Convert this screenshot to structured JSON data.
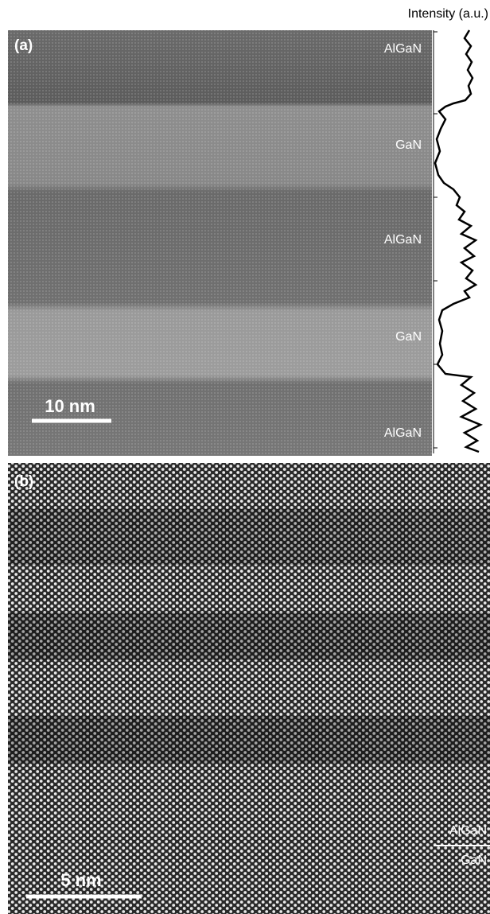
{
  "panel_a": {
    "label": "(a)",
    "axis_label": "Intensity (a.u.)",
    "layers": [
      "AlGaN",
      "GaN",
      "AlGaN",
      "GaN",
      "AlGaN"
    ],
    "scale_bar": "10 nm"
  },
  "panel_b": {
    "label": "(b)",
    "scale_bar": "5 nm",
    "interface_top": "AlGaN",
    "interface_bottom": "GaN"
  }
}
